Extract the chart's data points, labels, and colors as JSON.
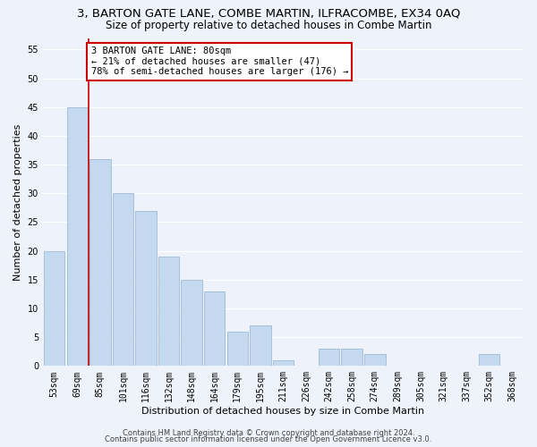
{
  "title": "3, BARTON GATE LANE, COMBE MARTIN, ILFRACOMBE, EX34 0AQ",
  "subtitle": "Size of property relative to detached houses in Combe Martin",
  "xlabel": "Distribution of detached houses by size in Combe Martin",
  "ylabel": "Number of detached properties",
  "bin_labels": [
    "53sqm",
    "69sqm",
    "85sqm",
    "101sqm",
    "116sqm",
    "132sqm",
    "148sqm",
    "164sqm",
    "179sqm",
    "195sqm",
    "211sqm",
    "226sqm",
    "242sqm",
    "258sqm",
    "274sqm",
    "289sqm",
    "305sqm",
    "321sqm",
    "337sqm",
    "352sqm",
    "368sqm"
  ],
  "bar_values": [
    20,
    45,
    36,
    30,
    27,
    19,
    15,
    13,
    6,
    7,
    1,
    0,
    3,
    3,
    2,
    0,
    0,
    0,
    0,
    2,
    0
  ],
  "bar_color": "#c5d9ee",
  "bar_edge_color": "#9bbbd8",
  "reference_line_x": 1.5,
  "reference_line_color": "#cc0000",
  "annotation_text": "3 BARTON GATE LANE: 80sqm\n← 21% of detached houses are smaller (47)\n78% of semi-detached houses are larger (176) →",
  "annotation_box_color": "#ffffff",
  "annotation_box_edge_color": "#cc0000",
  "ylim": [
    0,
    57
  ],
  "yticks": [
    0,
    5,
    10,
    15,
    20,
    25,
    30,
    35,
    40,
    45,
    50,
    55
  ],
  "footer_line1": "Contains HM Land Registry data © Crown copyright and database right 2024.",
  "footer_line2": "Contains public sector information licensed under the Open Government Licence v3.0.",
  "bg_color": "#eef2fa",
  "grid_color": "#ffffff",
  "title_fontsize": 9.5,
  "subtitle_fontsize": 8.5,
  "axis_label_fontsize": 8,
  "tick_fontsize": 7,
  "annotation_fontsize": 7.5,
  "footer_fontsize": 6
}
